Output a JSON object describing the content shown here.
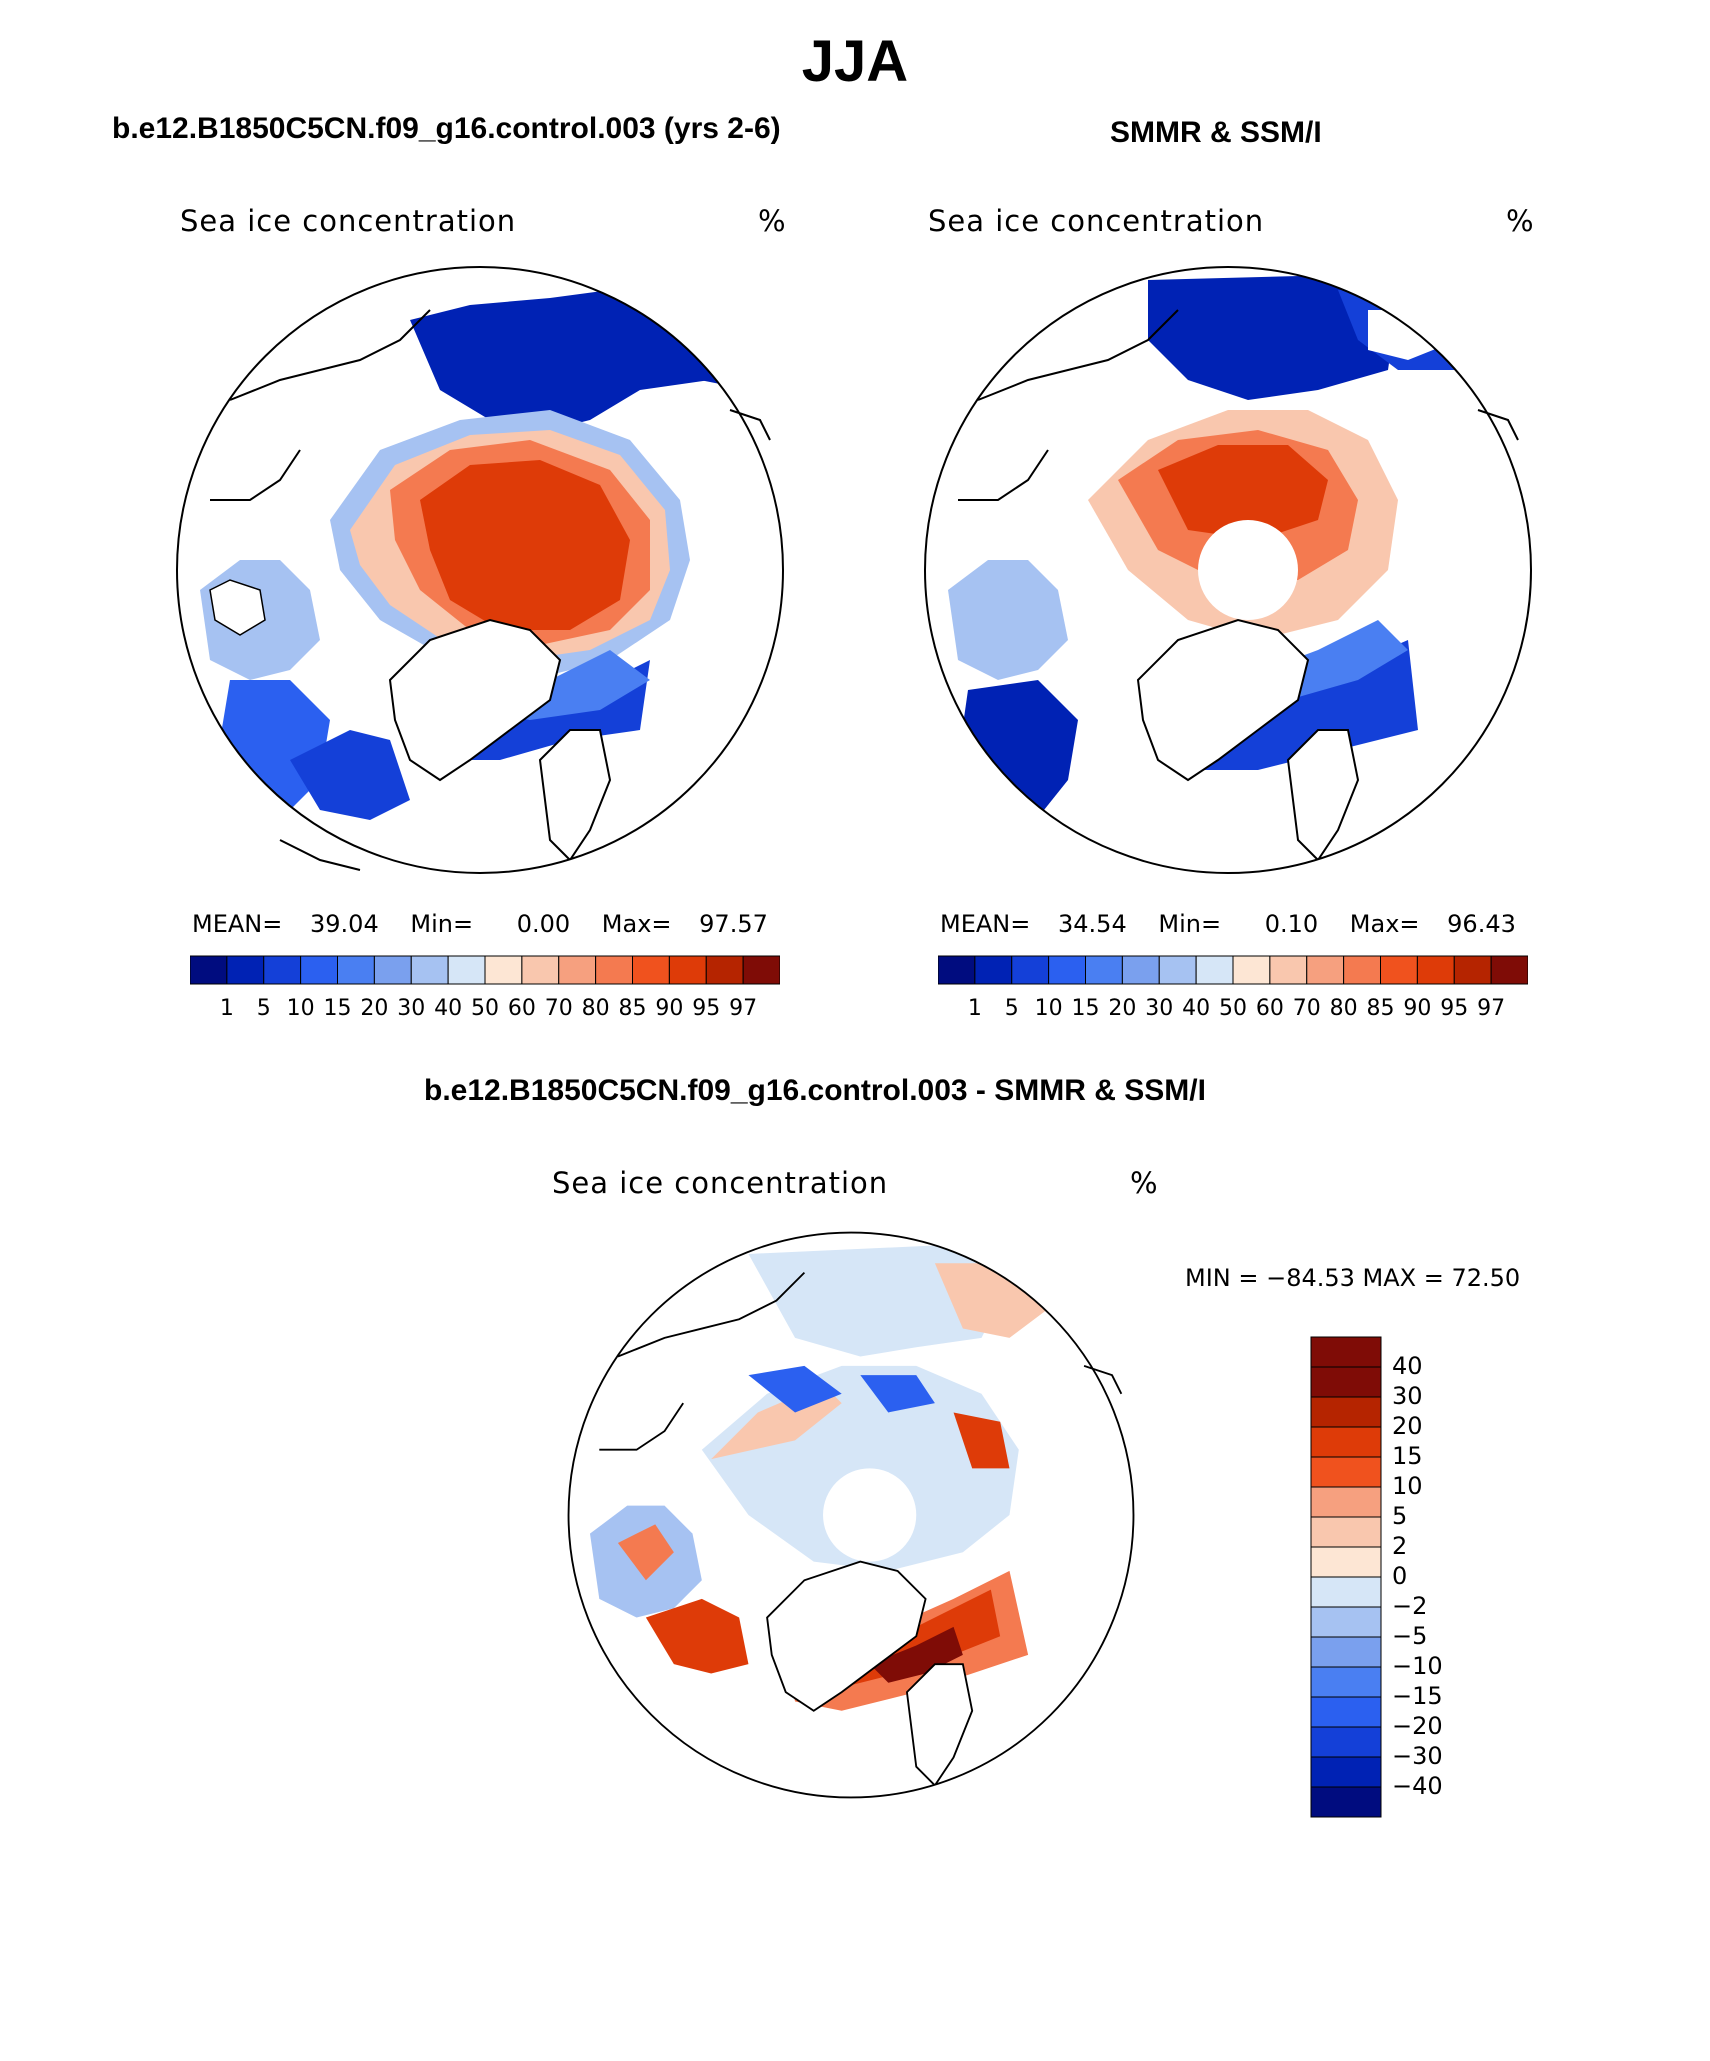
{
  "figure": {
    "season": "JJA",
    "palette": {
      "blue_ramp": [
        "#000c7f",
        "#0022b4",
        "#1440d8",
        "#2b60f0",
        "#4a7ff2",
        "#7aa0ee",
        "#a6c2f2",
        "#d6e6f7"
      ],
      "red_ramp": [
        "#fde6d4",
        "#f9c7ae",
        "#f6a07f",
        "#f47a50",
        "#f0521e",
        "#de3b08",
        "#b52400",
        "#7f0c06"
      ],
      "diff_colors": [
        "#7f0c06",
        "#b52400",
        "#de3b08",
        "#f0521e",
        "#f6a07f",
        "#f9c7ae",
        "#fde6d4",
        "#d6e6f7",
        "#a6c2f2",
        "#7aa0ee",
        "#4a7ff2",
        "#2b60f0",
        "#1440d8",
        "#0022b4",
        "#000c7f"
      ]
    }
  },
  "chart_data": [
    {
      "type": "heatmap",
      "panel": "model",
      "header": "b.e12.B1850C5CN.f09_g16.control.003 (yrs 2-6)",
      "title": "Sea ice concentration",
      "units": "%",
      "projection": "polar-stereographic-north",
      "stats": {
        "mean_label": "MEAN=",
        "mean": "39.04",
        "min_label": "Min=",
        "min": "0.00",
        "max_label": "Max=",
        "max": "97.57"
      },
      "colorbar": {
        "orientation": "horizontal",
        "levels": [
          "1",
          "5",
          "10",
          "15",
          "20",
          "30",
          "40",
          "50",
          "60",
          "70",
          "80",
          "85",
          "90",
          "95",
          "97"
        ]
      }
    },
    {
      "type": "heatmap",
      "panel": "observations",
      "header": "SMMR & SSM/I",
      "title": "Sea ice concentration",
      "units": "%",
      "projection": "polar-stereographic-north",
      "stats": {
        "mean_label": "MEAN=",
        "mean": "34.54",
        "min_label": "Min=",
        "min": "0.10",
        "max_label": "Max=",
        "max": "96.43"
      },
      "colorbar": {
        "orientation": "horizontal",
        "levels": [
          "1",
          "5",
          "10",
          "15",
          "20",
          "30",
          "40",
          "50",
          "60",
          "70",
          "80",
          "85",
          "90",
          "95",
          "97"
        ]
      }
    },
    {
      "type": "heatmap",
      "panel": "difference",
      "header": "b.e12.B1850C5CN.f09_g16.control.003 - SMMR & SSM/I",
      "title": "Sea ice concentration",
      "units": "%",
      "projection": "polar-stereographic-north",
      "range_text": "MIN = −84.53 MAX =   72.50",
      "colorbar": {
        "orientation": "vertical",
        "levels": [
          "40",
          "30",
          "20",
          "15",
          "10",
          "5",
          "2",
          "0",
          "−2",
          "−5",
          "−10",
          "−15",
          "−20",
          "−30",
          "−40"
        ]
      }
    }
  ]
}
